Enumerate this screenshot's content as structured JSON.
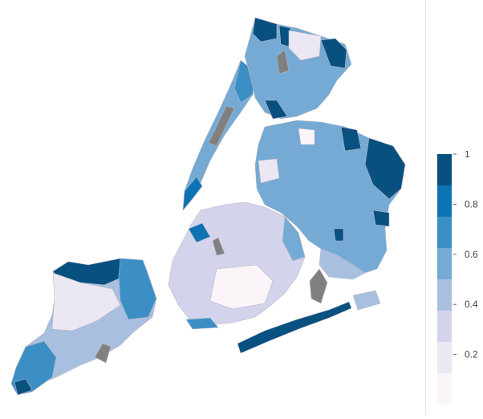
{
  "colorbar": {
    "ticks": [
      "1",
      "0.8",
      "0.6",
      "0.4",
      "0.2"
    ],
    "bins": [
      {
        "color": "#08507f"
      },
      {
        "color": "#0d74b4"
      },
      {
        "color": "#3c8fc4"
      },
      {
        "color": "#74aad4"
      },
      {
        "color": "#a9bfdf"
      },
      {
        "color": "#d3d3eb"
      },
      {
        "color": "#ece8f3"
      },
      {
        "color": "#fbf5fa"
      }
    ],
    "missing_color": "#808080"
  },
  "regions": [
    {
      "name": "staten-island",
      "value": 0.4
    },
    {
      "name": "manhattan",
      "value": 0.7
    },
    {
      "name": "bronx",
      "value": 0.6
    },
    {
      "name": "queens",
      "value": 0.6
    },
    {
      "name": "brooklyn",
      "value": 0.35
    },
    {
      "name": "rockaway",
      "value": 0.95
    }
  ]
}
